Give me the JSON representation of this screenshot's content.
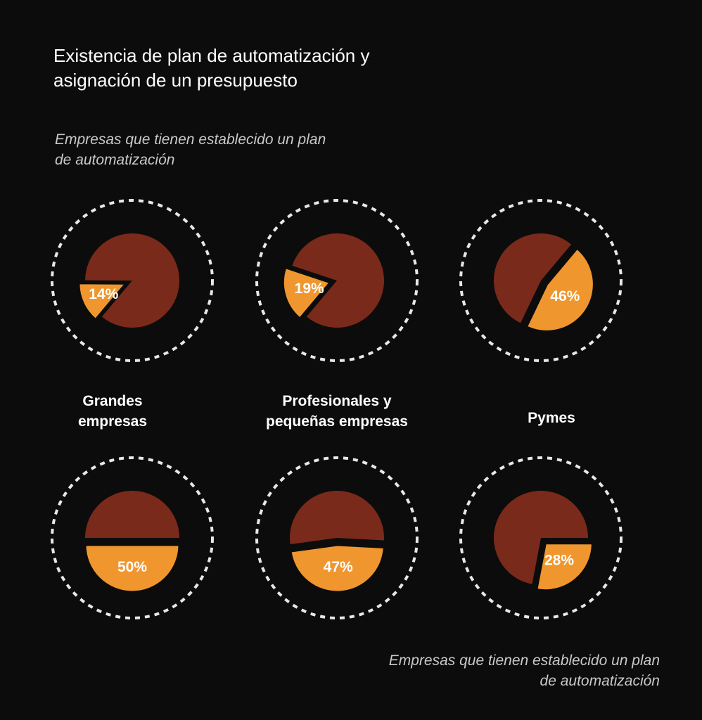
{
  "title_lines": [
    "Existencia de plan de automatización y",
    "asignación de un presupuesto"
  ],
  "subtitle_top_lines": [
    "Empresas que tienen establecido un plan",
    "de automatización"
  ],
  "subtitle_bottom_lines": [
    "Empresas que tienen establecido un plan",
    "de automatización"
  ],
  "groups": [
    {
      "lines": [
        "Grandes",
        "empresas"
      ]
    },
    {
      "lines": [
        "Profesionales y",
        "pequeñas empresas"
      ]
    },
    {
      "lines": [
        "Pymes"
      ]
    }
  ],
  "colors": {
    "highlight": "#f0962f",
    "rest": "#7a2a1a",
    "ring": "#e8e8e8",
    "background": "#0d0c0c"
  },
  "chart_data": [
    {
      "type": "pie",
      "group": "Grandes empresas",
      "row": 1,
      "highlight_value": 14,
      "rest_value": 86,
      "label": "14%"
    },
    {
      "type": "pie",
      "group": "Profesionales y pequeñas empresas",
      "row": 1,
      "highlight_value": 19,
      "rest_value": 81,
      "label": "19%"
    },
    {
      "type": "pie",
      "group": "Pymes",
      "row": 1,
      "highlight_value": 46,
      "rest_value": 54,
      "label": "46%"
    },
    {
      "type": "pie",
      "group": "Grandes empresas",
      "row": 2,
      "highlight_value": 50,
      "rest_value": 50,
      "label": "50%"
    },
    {
      "type": "pie",
      "group": "Profesionales y pequeñas empresas",
      "row": 2,
      "highlight_value": 47,
      "rest_value": 53,
      "label": "47%"
    },
    {
      "type": "pie",
      "group": "Pymes",
      "row": 2,
      "highlight_value": 28,
      "rest_value": 72,
      "label": "28%"
    }
  ]
}
